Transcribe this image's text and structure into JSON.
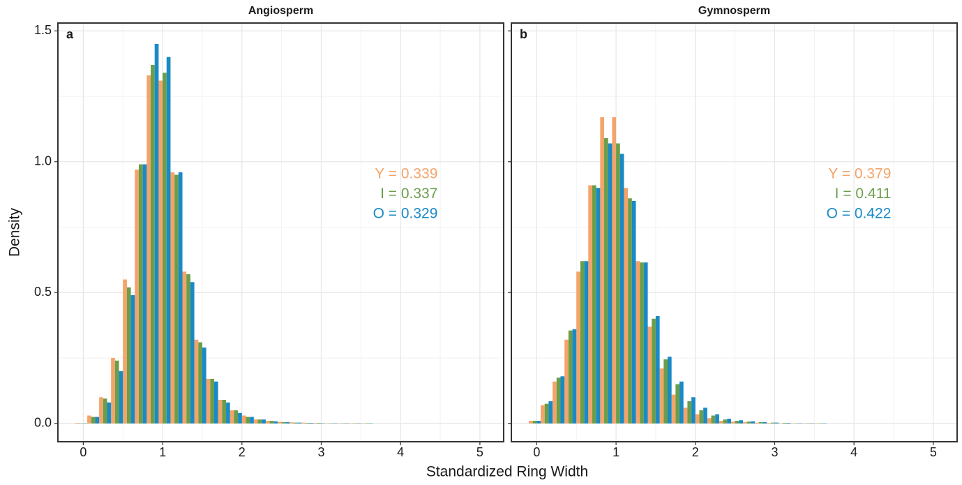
{
  "chart_data": [
    {
      "type": "histogram",
      "title": "Angiosperm",
      "panel_label": "a",
      "xlabel": "Standardized Ring Width",
      "ylabel": "Density",
      "bins": [
        -0.1,
        0.05,
        0.2,
        0.35,
        0.5,
        0.65,
        0.8,
        0.95,
        1.1,
        1.25,
        1.4,
        1.55,
        1.7,
        1.85,
        2.0,
        2.15,
        2.3,
        2.45,
        2.6,
        2.75,
        2.9,
        3.05,
        3.2,
        3.35,
        3.5,
        3.65
      ],
      "series": [
        {
          "name": "Y",
          "color": "#f4a46a",
          "values": [
            0.002,
            0.03,
            0.1,
            0.25,
            0.55,
            0.97,
            1.33,
            1.31,
            0.96,
            0.58,
            0.32,
            0.17,
            0.09,
            0.05,
            0.03,
            0.015,
            0.01,
            0.006,
            0.004,
            0.003,
            0.002,
            0.001,
            0.001,
            0.001,
            0.001
          ]
        },
        {
          "name": "I",
          "color": "#6a9e4b",
          "values": [
            0.001,
            0.025,
            0.095,
            0.24,
            0.52,
            0.99,
            1.37,
            1.34,
            0.95,
            0.57,
            0.31,
            0.17,
            0.09,
            0.05,
            0.025,
            0.015,
            0.01,
            0.005,
            0.003,
            0.002,
            0.002,
            0.001,
            0.001,
            0.001,
            0.001
          ]
        },
        {
          "name": "O",
          "color": "#1a8ac6",
          "values": [
            0.001,
            0.025,
            0.08,
            0.2,
            0.49,
            0.99,
            1.45,
            1.4,
            0.96,
            0.54,
            0.29,
            0.16,
            0.08,
            0.04,
            0.025,
            0.015,
            0.008,
            0.005,
            0.003,
            0.002,
            0.001,
            0.001,
            0.001,
            0.001,
            0.001
          ]
        }
      ],
      "annotations": [
        {
          "text": "Y = 0.339",
          "color": "#f4a46a"
        },
        {
          "text": "I  = 0.337",
          "color": "#6a9e4b"
        },
        {
          "text": "O = 0.329",
          "color": "#1a8ac6"
        }
      ],
      "xlim": [
        -0.32,
        5.3
      ],
      "xticks": [
        0,
        1,
        2,
        3,
        4,
        5
      ],
      "ylim": [
        -0.07,
        1.53
      ],
      "yticks": [
        {
          "value": 0,
          "label": "0.0"
        },
        0.5,
        {
          "value": 1,
          "label": "1.0"
        },
        1.5
      ],
      "grid": true
    },
    {
      "type": "histogram",
      "title": "Gymnosperm",
      "panel_label": "b",
      "bins": [
        -0.1,
        0.05,
        0.2,
        0.35,
        0.5,
        0.65,
        0.8,
        0.95,
        1.1,
        1.25,
        1.4,
        1.55,
        1.7,
        1.85,
        2.0,
        2.15,
        2.3,
        2.45,
        2.6,
        2.75,
        2.9,
        3.05,
        3.2,
        3.35,
        3.5,
        3.65
      ],
      "series": [
        {
          "name": "Y",
          "color": "#f4a46a",
          "values": [
            0.01,
            0.07,
            0.16,
            0.32,
            0.58,
            0.91,
            1.17,
            1.17,
            0.9,
            0.62,
            0.37,
            0.21,
            0.11,
            0.06,
            0.035,
            0.02,
            0.01,
            0.007,
            0.005,
            0.003,
            0.002,
            0.001,
            0.001,
            0.001,
            0.001
          ]
        },
        {
          "name": "I",
          "color": "#6a9e4b",
          "values": [
            0.01,
            0.075,
            0.175,
            0.355,
            0.62,
            0.91,
            1.09,
            1.07,
            0.86,
            0.615,
            0.4,
            0.245,
            0.15,
            0.085,
            0.05,
            0.03,
            0.015,
            0.01,
            0.007,
            0.005,
            0.003,
            0.002,
            0.001,
            0.001,
            0.001
          ]
        },
        {
          "name": "O",
          "color": "#1a8ac6",
          "values": [
            0.01,
            0.085,
            0.18,
            0.36,
            0.62,
            0.9,
            1.07,
            1.03,
            0.85,
            0.615,
            0.41,
            0.255,
            0.16,
            0.1,
            0.06,
            0.035,
            0.018,
            0.012,
            0.008,
            0.005,
            0.003,
            0.002,
            0.001,
            0.001,
            0.001
          ]
        }
      ],
      "annotations": [
        {
          "text": "Y = 0.379",
          "color": "#f4a46a"
        },
        {
          "text": "I  = 0.411",
          "color": "#6a9e4b"
        },
        {
          "text": "O = 0.422",
          "color": "#1a8ac6"
        }
      ],
      "xlim": [
        -0.32,
        5.3
      ],
      "xticks": [
        0,
        1,
        2,
        3,
        4,
        5
      ],
      "ylim": [
        -0.07,
        1.53
      ],
      "yticks": [
        0,
        0.5,
        1,
        1.5
      ],
      "grid": true
    }
  ]
}
